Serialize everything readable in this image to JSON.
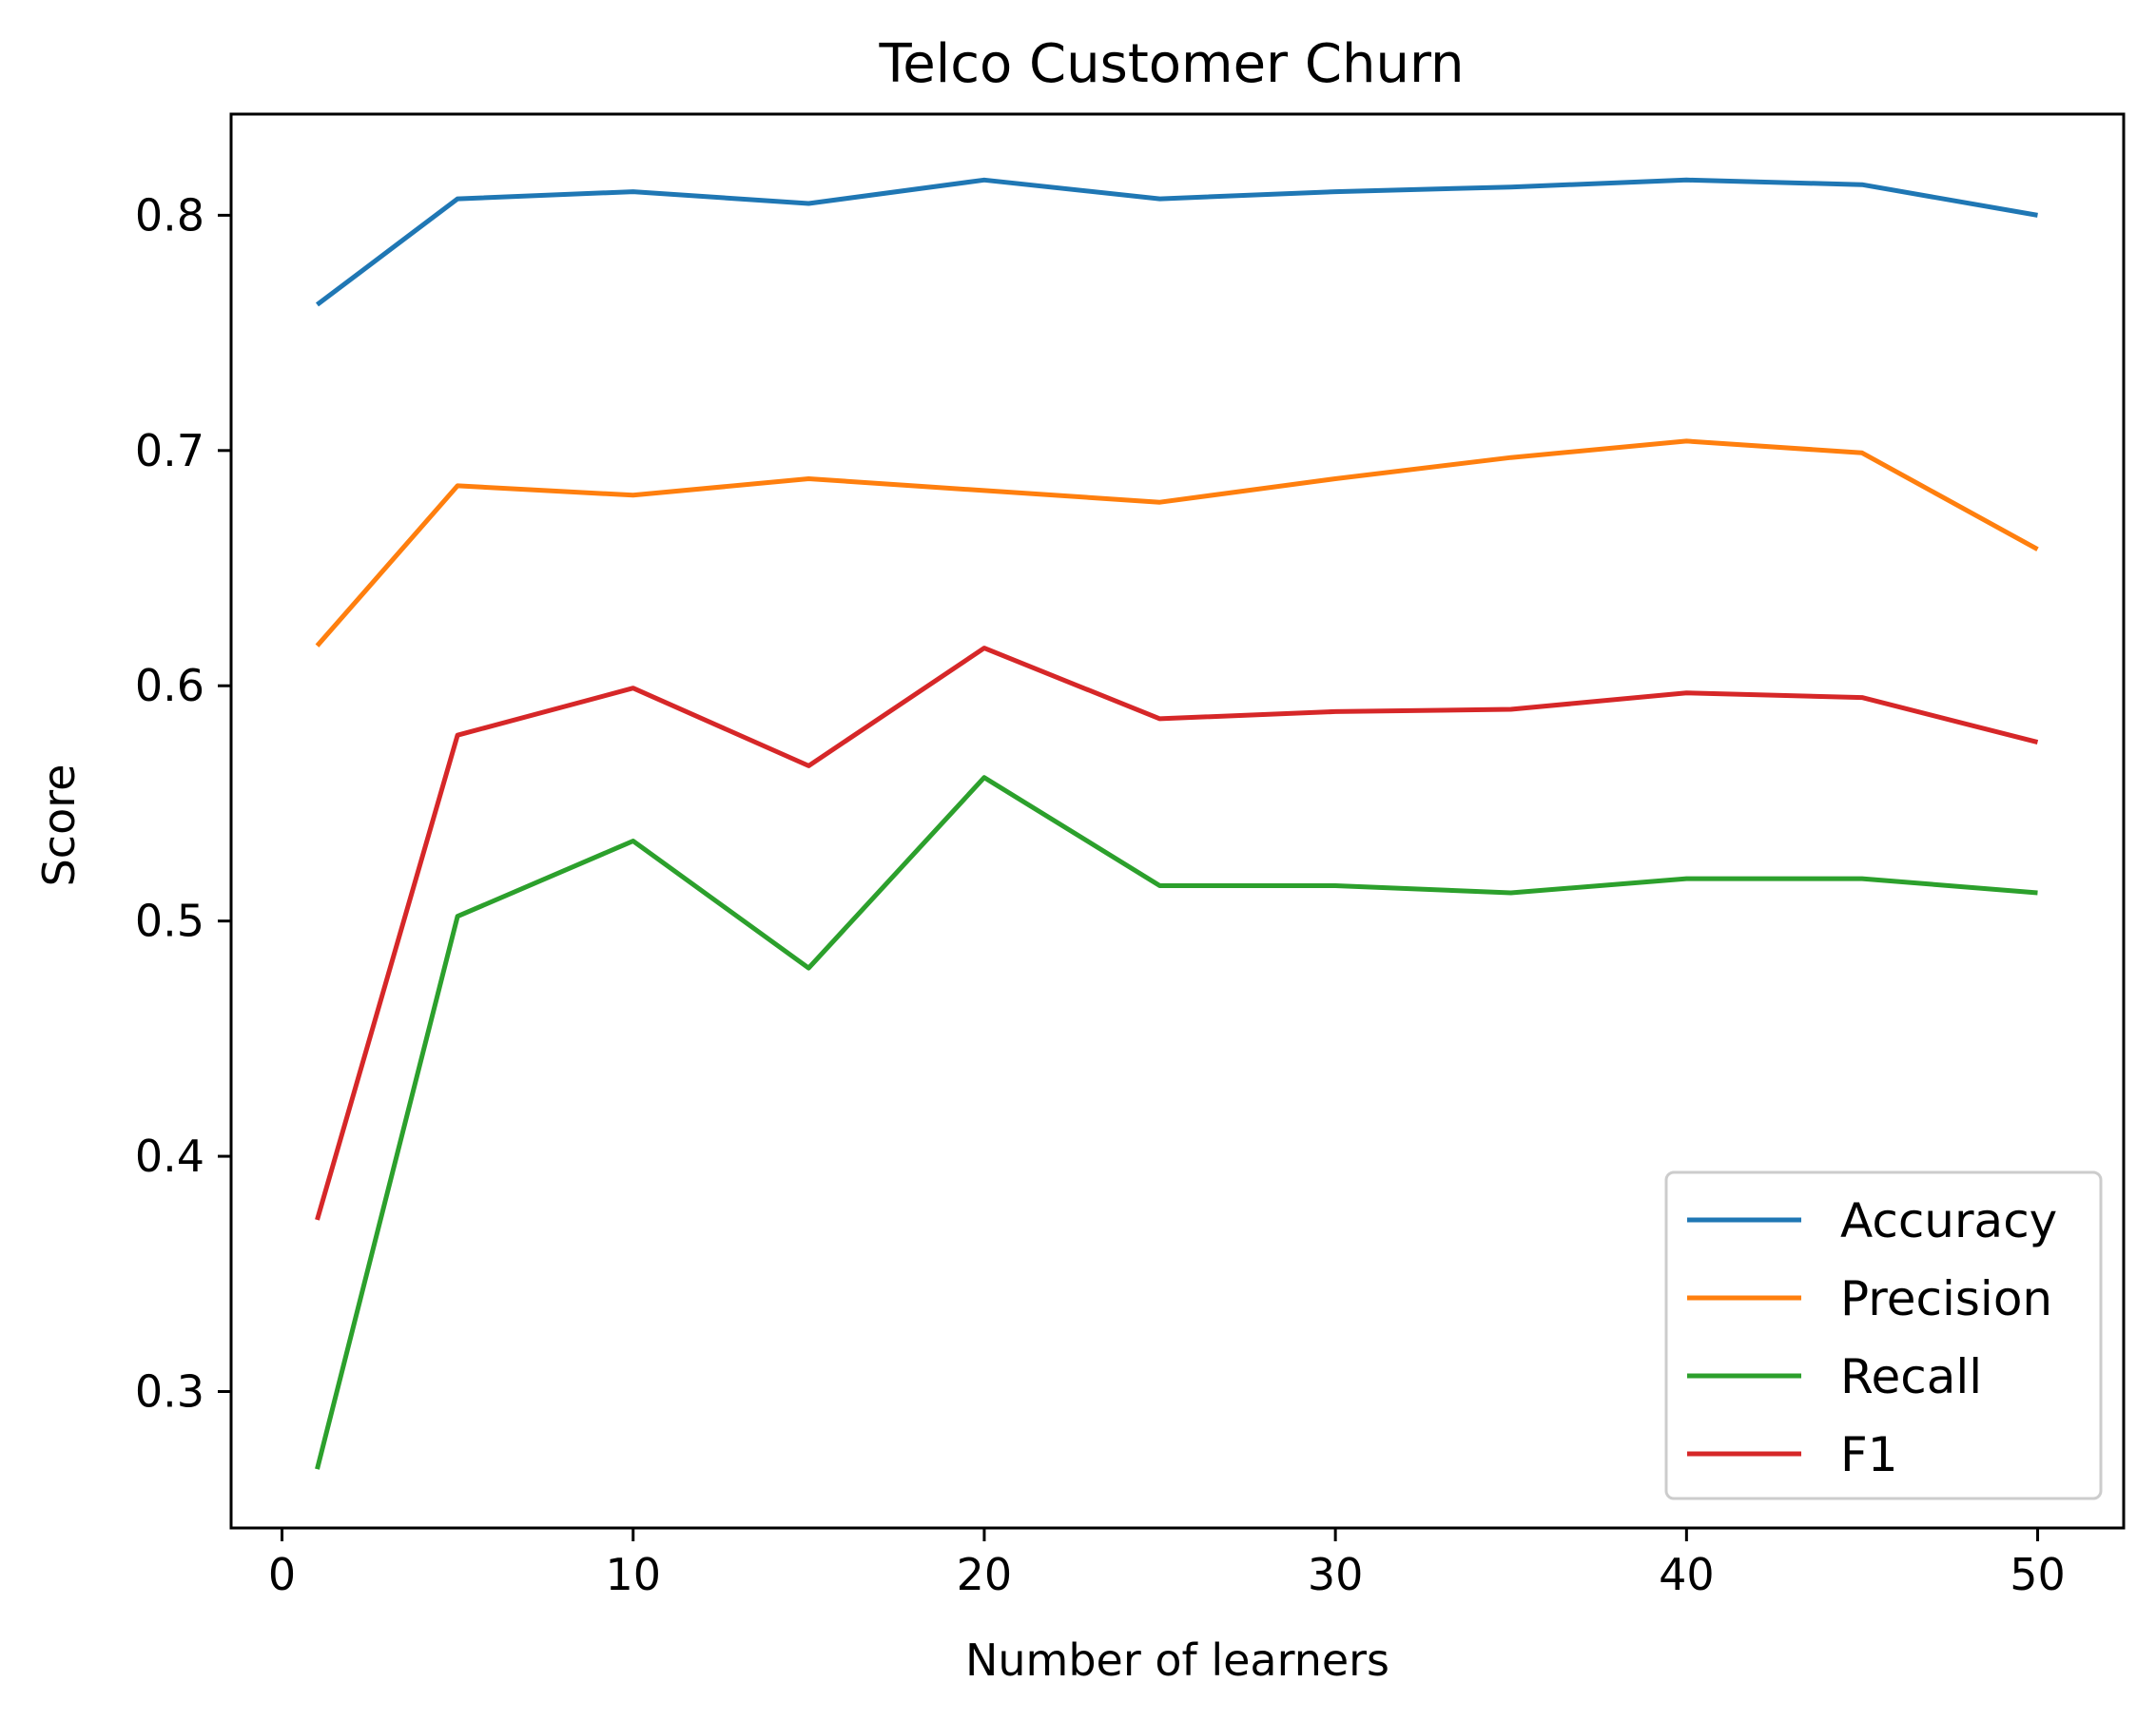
{
  "chart_data": {
    "type": "line",
    "title": "Telco Customer Churn",
    "xlabel": "Number of learners",
    "ylabel": "Score",
    "x": [
      1,
      5,
      10,
      15,
      20,
      25,
      30,
      35,
      40,
      45,
      50
    ],
    "xlim": [
      -1.45,
      52.45
    ],
    "ylim": [
      0.242,
      0.843
    ],
    "xticks": [
      0,
      10,
      20,
      30,
      40,
      50
    ],
    "yticks": [
      0.3,
      0.4,
      0.5,
      0.6,
      0.7,
      0.8
    ],
    "xtick_labels": [
      "0",
      "10",
      "20",
      "30",
      "40",
      "50"
    ],
    "ytick_labels": [
      "0.3",
      "0.4",
      "0.5",
      "0.6",
      "0.7",
      "0.8"
    ],
    "grid": false,
    "legend_position": "bottom-right",
    "series": [
      {
        "name": "Accuracy",
        "color": "#1f77b4",
        "values": [
          0.762,
          0.807,
          0.81,
          0.805,
          0.815,
          0.807,
          0.81,
          0.812,
          0.815,
          0.813,
          0.8
        ]
      },
      {
        "name": "Precision",
        "color": "#ff7f0e",
        "values": [
          0.617,
          0.685,
          0.681,
          0.688,
          0.683,
          0.678,
          0.688,
          0.697,
          0.704,
          0.699,
          0.658
        ]
      },
      {
        "name": "Recall",
        "color": "#2ca02c",
        "values": [
          0.267,
          0.502,
          0.534,
          0.48,
          0.561,
          0.515,
          0.515,
          0.512,
          0.518,
          0.518,
          0.512
        ]
      },
      {
        "name": "F1",
        "color": "#d62728",
        "values": [
          0.373,
          0.579,
          0.599,
          0.566,
          0.616,
          0.586,
          0.589,
          0.59,
          0.597,
          0.595,
          0.576
        ]
      }
    ]
  }
}
